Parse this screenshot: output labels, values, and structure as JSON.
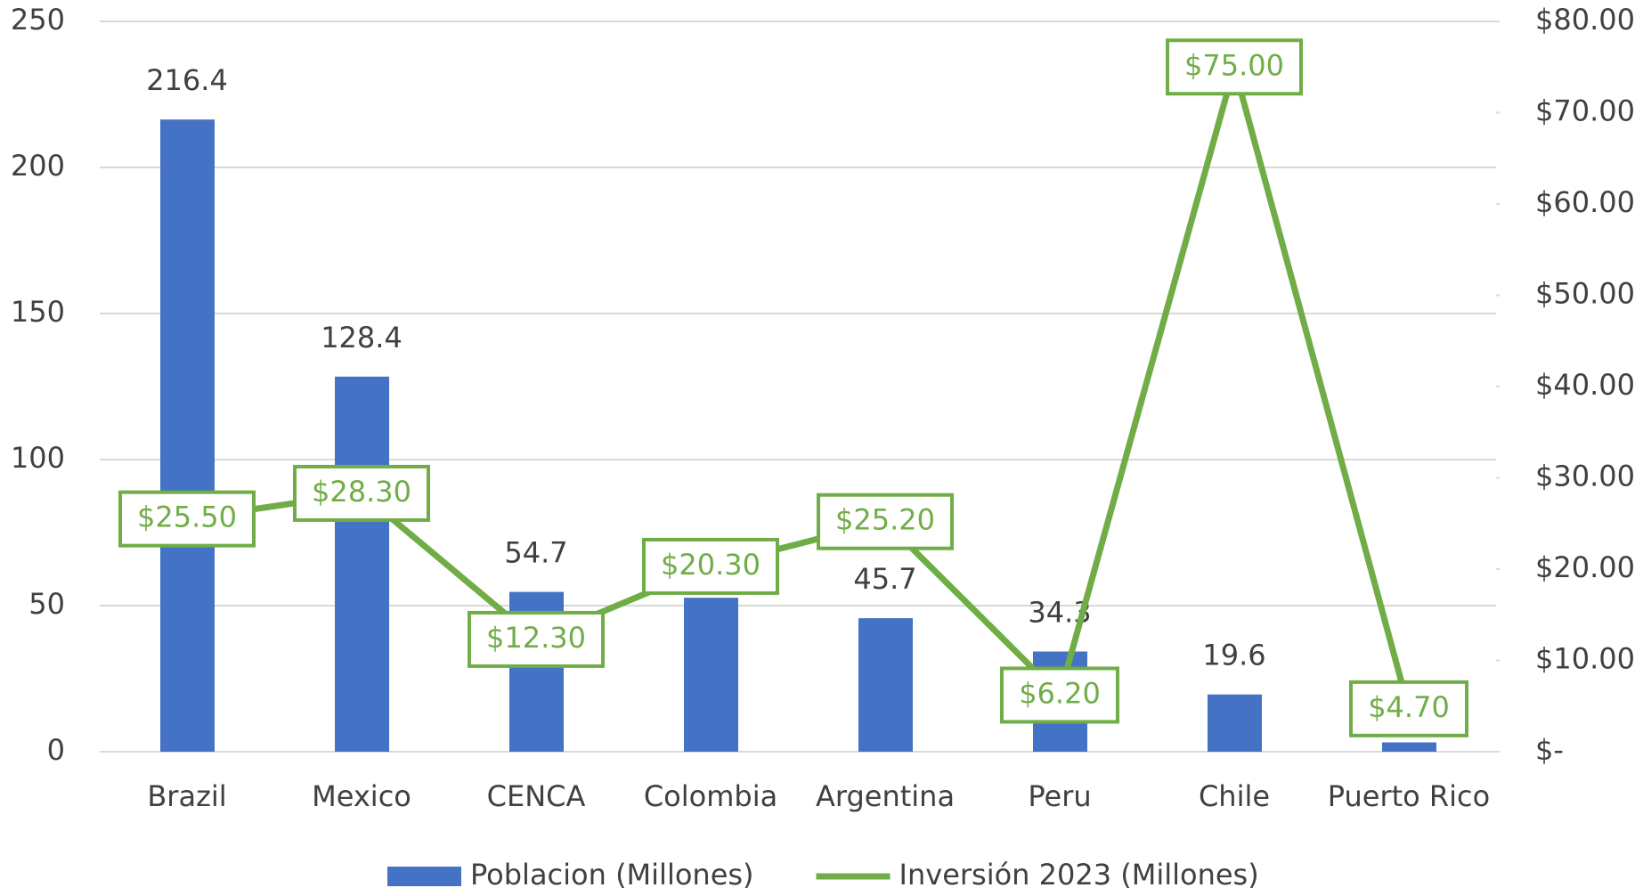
{
  "chart_data": {
    "type": "bar",
    "categories": [
      "Brazil",
      "Mexico",
      "CENCA",
      "Colombia",
      "Argentina",
      "Peru",
      "Chile",
      "Puerto Rico"
    ],
    "series": [
      {
        "name": "Poblacion (Millones)",
        "type": "bar",
        "color": "#4472c4",
        "values": [
          216.4,
          128.4,
          54.7,
          52.7,
          45.7,
          34.3,
          19.6,
          3.2
        ]
      },
      {
        "name": "Inversión 2023 (Millones)",
        "type": "line",
        "axis": "y2",
        "color": "#70ad47",
        "values": [
          25.5,
          28.3,
          12.3,
          20.3,
          25.2,
          6.2,
          75,
          4.7
        ],
        "value_labels": [
          "$25.50",
          "$28.30",
          "$12.30",
          "$20.30",
          "$25.20",
          "$6.20",
          "$75.00",
          "$4.70"
        ]
      }
    ],
    "ylim": [
      0,
      250
    ],
    "yticks": [
      0,
      50,
      100,
      150,
      200,
      250
    ],
    "y2lim": [
      0,
      80
    ],
    "y2ticks": [
      {
        "value": 0,
        "label": "$-"
      },
      {
        "value": 10,
        "label": "$10.00"
      },
      {
        "value": 20,
        "label": "$20.00"
      },
      {
        "value": 30,
        "label": "$30.00"
      },
      {
        "value": 40,
        "label": "$40.00"
      },
      {
        "value": 50,
        "label": "$50.00"
      },
      {
        "value": 60,
        "label": "$60.00"
      },
      {
        "value": 70,
        "label": "$70.00"
      },
      {
        "value": 80,
        "label": "$80.00"
      }
    ],
    "grid": true,
    "legend": "bottom"
  }
}
